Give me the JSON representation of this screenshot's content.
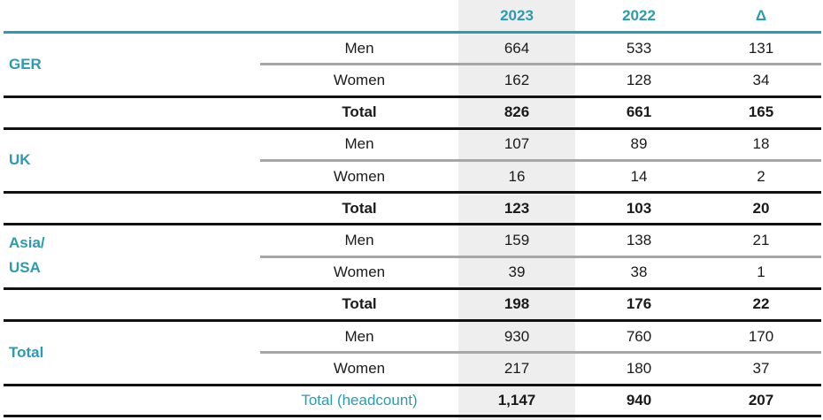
{
  "header": {
    "col_2023": "2023",
    "col_2022": "2022",
    "col_delta": "Δ"
  },
  "groups": [
    {
      "region": "GER",
      "rows": [
        {
          "label": "Men",
          "v2023": "664",
          "v2022": "533",
          "delta": "131"
        },
        {
          "label": "Women",
          "v2023": "162",
          "v2022": "128",
          "delta": "34"
        },
        {
          "label": "Total",
          "v2023": "826",
          "v2022": "661",
          "delta": "165"
        }
      ]
    },
    {
      "region": "UK",
      "rows": [
        {
          "label": "Men",
          "v2023": "107",
          "v2022": "89",
          "delta": "18"
        },
        {
          "label": "Women",
          "v2023": "16",
          "v2022": "14",
          "delta": "2"
        },
        {
          "label": "Total",
          "v2023": "123",
          "v2022": "103",
          "delta": "20"
        }
      ]
    },
    {
      "region_line1": "Asia/",
      "region_line2": "USA",
      "rows": [
        {
          "label": "Men",
          "v2023": "159",
          "v2022": "138",
          "delta": "21"
        },
        {
          "label": "Women",
          "v2023": "39",
          "v2022": "38",
          "delta": "1"
        },
        {
          "label": "Total",
          "v2023": "198",
          "v2022": "176",
          "delta": "22"
        }
      ]
    },
    {
      "region": "Total",
      "rows": [
        {
          "label": "Men",
          "v2023": "930",
          "v2022": "760",
          "delta": "170"
        },
        {
          "label": "Women",
          "v2023": "217",
          "v2022": "180",
          "delta": "37"
        },
        {
          "label": "Total (headcount)",
          "v2023": "1,147",
          "v2022": "940",
          "delta": "207"
        }
      ]
    }
  ]
}
